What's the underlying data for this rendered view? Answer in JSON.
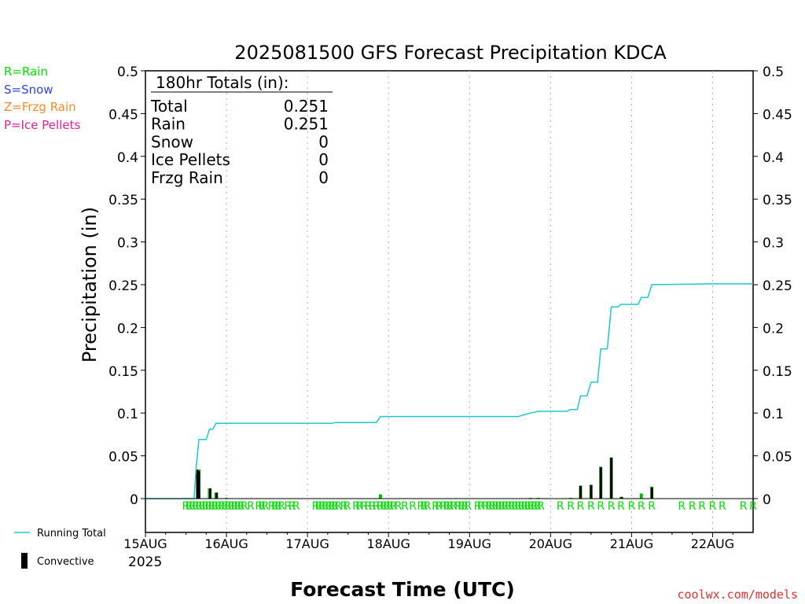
{
  "chart_data": {
    "type": "bar",
    "title": "2025081500 GFS Forecast Precipitation KDCA",
    "ylabel": "Precipitation (in)",
    "xlabel": "Forecast Time (UTC)",
    "ylim": [
      0,
      0.5
    ],
    "yticks": [
      "0",
      "0.05",
      "0.1",
      "0.15",
      "0.2",
      "0.25",
      "0.3",
      "0.35",
      "0.4",
      "0.45",
      "0.5"
    ],
    "xticks": [
      {
        "day": 0,
        "label": "15AUG"
      },
      {
        "day": 1,
        "label": "16AUG"
      },
      {
        "day": 2,
        "label": "17AUG"
      },
      {
        "day": 3,
        "label": "18AUG"
      },
      {
        "day": 4,
        "label": "19AUG"
      },
      {
        "day": 5,
        "label": "20AUG"
      },
      {
        "day": 6,
        "label": "21AUG"
      },
      {
        "day": 7,
        "label": "22AUG"
      }
    ],
    "year_label": "2025",
    "x_range_days": [
      0,
      7.5
    ],
    "grid": "dotted-vertical",
    "legend": {
      "precip_types": [
        {
          "label": "R=Rain",
          "color": "#00dd00"
        },
        {
          "label": "S=Snow",
          "color": "#3344dd"
        },
        {
          "label": "Z=Frzg Rain",
          "color": "#f08c28"
        },
        {
          "label": "P=Ice Pellets",
          "color": "#e0208c"
        }
      ],
      "running_total_label": "Running Total",
      "convective_label": "Convective"
    },
    "totals_box": {
      "heading": "180hr Totals (in):",
      "rows": [
        {
          "label": "Total",
          "value": "0.251"
        },
        {
          "label": "Rain",
          "value": "0.251"
        },
        {
          "label": "Snow",
          "value": "0"
        },
        {
          "label": "Ice Pellets",
          "value": "0"
        },
        {
          "label": "Frzg Rain",
          "value": "0"
        }
      ]
    },
    "colors": {
      "running_total": "#20c8c8",
      "precip_bar": "#00bb00",
      "convective": "#000000",
      "rain_marker": "#00dd00"
    },
    "series": [
      {
        "name": "Running Total",
        "type": "line",
        "points": [
          [
            0,
            0
          ],
          [
            0.6,
            0
          ],
          [
            0.625,
            0.035
          ],
          [
            0.66,
            0.069
          ],
          [
            0.75,
            0.069
          ],
          [
            0.79,
            0.081
          ],
          [
            0.83,
            0.081
          ],
          [
            0.87,
            0.088
          ],
          [
            1.5,
            0.088
          ],
          [
            2.0,
            0.088
          ],
          [
            2.3,
            0.088
          ],
          [
            2.35,
            0.089
          ],
          [
            2.85,
            0.089
          ],
          [
            2.9,
            0.096
          ],
          [
            3.5,
            0.096
          ],
          [
            4.0,
            0.096
          ],
          [
            4.6,
            0.096
          ],
          [
            4.75,
            0.1
          ],
          [
            4.85,
            0.102
          ],
          [
            5.0,
            0.102
          ],
          [
            5.2,
            0.102
          ],
          [
            5.25,
            0.104
          ],
          [
            5.33,
            0.104
          ],
          [
            5.37,
            0.12
          ],
          [
            5.45,
            0.12
          ],
          [
            5.5,
            0.136
          ],
          [
            5.58,
            0.136
          ],
          [
            5.62,
            0.175
          ],
          [
            5.7,
            0.175
          ],
          [
            5.75,
            0.224
          ],
          [
            5.83,
            0.224
          ],
          [
            5.87,
            0.227
          ],
          [
            6.08,
            0.227
          ],
          [
            6.12,
            0.235
          ],
          [
            6.2,
            0.235
          ],
          [
            6.25,
            0.25
          ],
          [
            7.0,
            0.251
          ],
          [
            7.5,
            0.251
          ]
        ]
      },
      {
        "name": "Precipitation",
        "type": "bar",
        "bars": [
          [
            0.66,
            0.034
          ],
          [
            0.79,
            0.012
          ],
          [
            0.87,
            0.007
          ],
          [
            1.0,
            0.001
          ],
          [
            1.3,
            0.0005
          ],
          [
            2.3,
            0.0005
          ],
          [
            2.85,
            0.0005
          ],
          [
            2.9,
            0.005
          ],
          [
            3.2,
            0.0005
          ],
          [
            4.75,
            0.001
          ],
          [
            4.85,
            0.001
          ],
          [
            5.25,
            0.001
          ],
          [
            5.37,
            0.015
          ],
          [
            5.5,
            0.016
          ],
          [
            5.62,
            0.037
          ],
          [
            5.75,
            0.048
          ],
          [
            5.87,
            0.002
          ],
          [
            6.12,
            0.006
          ],
          [
            6.25,
            0.014
          ]
        ]
      },
      {
        "name": "Convective",
        "type": "bar",
        "bars": [
          [
            0.64,
            0.034
          ],
          [
            0.66,
            0.032
          ],
          [
            0.8,
            0.012
          ],
          [
            0.88,
            0.007
          ],
          [
            5.37,
            0.015
          ],
          [
            5.5,
            0.016
          ],
          [
            5.62,
            0.037
          ],
          [
            5.75,
            0.048
          ],
          [
            5.88,
            0.002
          ],
          [
            6.25,
            0.013
          ]
        ]
      }
    ],
    "precip_type_markers": {
      "symbol": "R",
      "days": [
        0.5,
        0.54,
        0.58,
        0.62,
        0.66,
        0.7,
        0.74,
        0.78,
        0.82,
        0.86,
        0.9,
        0.94,
        0.98,
        1.02,
        1.06,
        1.1,
        1.14,
        1.18,
        1.22,
        1.3,
        1.4,
        1.44,
        1.48,
        1.56,
        1.6,
        1.64,
        1.68,
        1.76,
        1.81,
        1.86,
        2.1,
        2.14,
        2.18,
        2.22,
        2.26,
        2.3,
        2.34,
        2.38,
        2.45,
        2.49,
        2.6,
        2.64,
        2.7,
        2.75,
        2.8,
        2.85,
        2.9,
        2.94,
        2.98,
        3.02,
        3.06,
        3.12,
        3.2,
        3.3,
        3.4,
        3.44,
        3.48,
        3.58,
        3.62,
        3.68,
        3.72,
        3.76,
        3.8,
        3.86,
        3.9,
        3.94,
        3.98,
        4.1,
        4.14,
        4.2,
        4.24,
        4.28,
        4.32,
        4.36,
        4.4,
        4.44,
        4.48,
        4.52,
        4.56,
        4.6,
        4.64,
        4.68,
        4.72,
        4.76,
        4.8,
        4.84,
        4.88,
        5.12,
        5.25,
        5.37,
        5.5,
        5.62,
        5.75,
        5.87,
        6.0,
        6.12,
        6.25,
        6.62,
        6.75,
        6.87,
        7.0,
        7.12,
        7.38,
        7.5
      ]
    }
  },
  "footer": {
    "site": "coolwx.com/models"
  }
}
